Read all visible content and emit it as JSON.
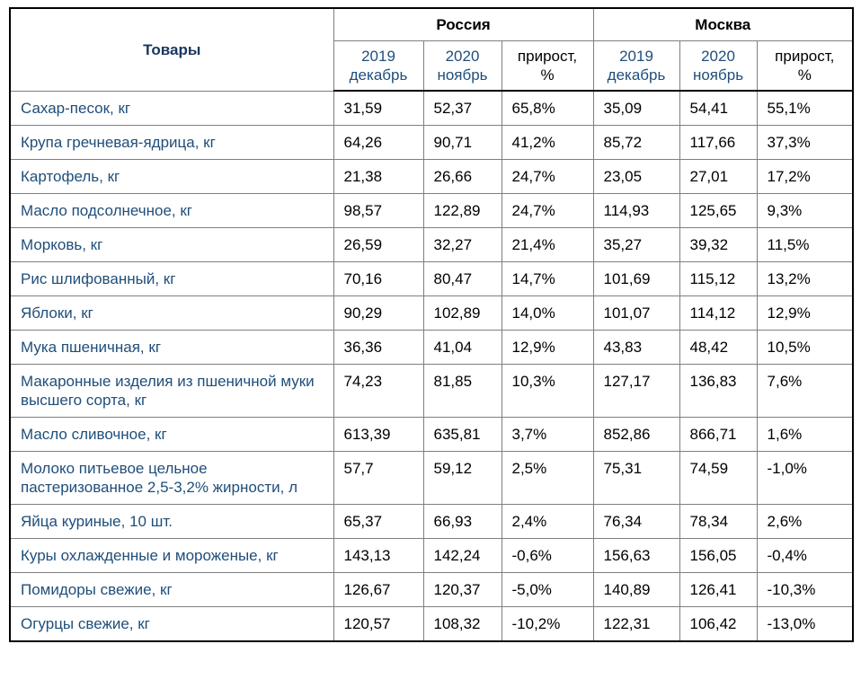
{
  "header": {
    "products": "Товары",
    "groups": [
      "Россия",
      "Москва"
    ],
    "periods": [
      {
        "line1": "2019",
        "line2": "декабрь"
      },
      {
        "line1": "2020",
        "line2": "ноябрь"
      },
      {
        "line1": "прирост,",
        "line2": "%"
      },
      {
        "line1": "2019",
        "line2": "декабрь"
      },
      {
        "line1": "2020",
        "line2": "ноябрь"
      },
      {
        "line1": "прирост,",
        "line2": "%"
      }
    ]
  },
  "colors": {
    "product_text": "#1f4e7a",
    "products_header_text": "#17375d",
    "group_header_text": "#000000",
    "value_text": "#000000",
    "grid_line": "#7f7f7f",
    "frame": "#000000",
    "background": "#ffffff"
  },
  "rows": [
    {
      "name": "Сахар-песок, кг",
      "values": [
        "31,59",
        "52,37",
        "65,8%",
        "35,09",
        "54,41",
        "55,1%"
      ]
    },
    {
      "name": "Крупа гречневая-ядрица, кг",
      "values": [
        "64,26",
        "90,71",
        "41,2%",
        "85,72",
        "117,66",
        "37,3%"
      ]
    },
    {
      "name": "Картофель, кг",
      "values": [
        "21,38",
        "26,66",
        "24,7%",
        "23,05",
        "27,01",
        "17,2%"
      ]
    },
    {
      "name": "Масло подсолнечное, кг",
      "values": [
        "98,57",
        "122,89",
        "24,7%",
        "114,93",
        "125,65",
        "9,3%"
      ]
    },
    {
      "name": "Морковь, кг",
      "values": [
        "26,59",
        "32,27",
        "21,4%",
        "35,27",
        "39,32",
        "11,5%"
      ]
    },
    {
      "name": "Рис шлифованный, кг",
      "values": [
        "70,16",
        "80,47",
        "14,7%",
        "101,69",
        "115,12",
        "13,2%"
      ]
    },
    {
      "name": "Яблоки, кг",
      "values": [
        "90,29",
        "102,89",
        "14,0%",
        "101,07",
        "114,12",
        "12,9%"
      ]
    },
    {
      "name": "Мука пшеничная, кг",
      "values": [
        "36,36",
        "41,04",
        "12,9%",
        "43,83",
        "48,42",
        "10,5%"
      ]
    },
    {
      "name": "Макаронные изделия из пшеничной муки высшего сорта, кг",
      "values": [
        "74,23",
        "81,85",
        "10,3%",
        "127,17",
        "136,83",
        "7,6%"
      ]
    },
    {
      "name": "Масло сливочное, кг",
      "values": [
        "613,39",
        "635,81",
        "3,7%",
        "852,86",
        "866,71",
        "1,6%"
      ]
    },
    {
      "name": "Молоко питьевое цельное пастеризованное 2,5-3,2% жирности, л",
      "values": [
        "57,7",
        "59,12",
        "2,5%",
        "75,31",
        "74,59",
        "-1,0%"
      ]
    },
    {
      "name": "Яйца куриные, 10 шт.",
      "values": [
        "65,37",
        "66,93",
        "2,4%",
        "76,34",
        "78,34",
        "2,6%"
      ]
    },
    {
      "name": "Куры охлажденные и мороженые, кг",
      "values": [
        "143,13",
        "142,24",
        "-0,6%",
        "156,63",
        "156,05",
        "-0,4%"
      ]
    },
    {
      "name": "Помидоры свежие, кг",
      "values": [
        "126,67",
        "120,37",
        "-5,0%",
        "140,89",
        "126,41",
        "-10,3%"
      ]
    },
    {
      "name": "Огурцы свежие, кг",
      "values": [
        "120,57",
        "108,32",
        "-10,2%",
        "122,31",
        "106,42",
        "-13,0%"
      ]
    }
  ]
}
